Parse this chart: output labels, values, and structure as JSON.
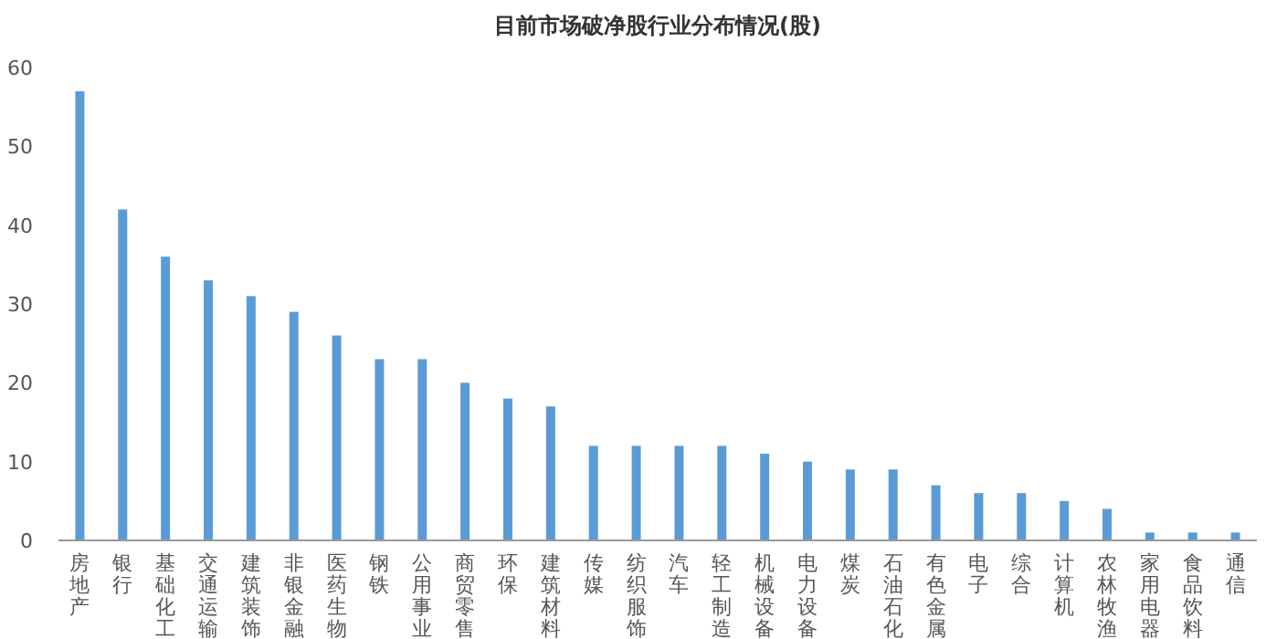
{
  "chart_data": {
    "type": "bar",
    "title": "目前市场破净股行业分布情况(股)",
    "categories": [
      "房地产",
      "银行",
      "基础化工",
      "交通运输",
      "建筑装饰",
      "非银金融",
      "医药生物",
      "钢铁",
      "公用事业",
      "商贸零售",
      "环保",
      "建筑材料",
      "传媒",
      "纺织服饰",
      "汽车",
      "轻工制造",
      "机械设备",
      "电力设备",
      "煤炭",
      "石油石化",
      "有色金属",
      "电子",
      "综合",
      "计算机",
      "农林牧渔",
      "家用电器",
      "食品饮料",
      "通信"
    ],
    "values": [
      57,
      42,
      36,
      33,
      31,
      29,
      26,
      23,
      23,
      20,
      18,
      17,
      12,
      12,
      12,
      12,
      11,
      10,
      9,
      9,
      7,
      6,
      6,
      5,
      4,
      1,
      1,
      1
    ],
    "color": "#5b9bd5",
    "ylim": [
      0,
      60
    ],
    "yticks": [
      0,
      10,
      20,
      30,
      40,
      50,
      60
    ]
  }
}
